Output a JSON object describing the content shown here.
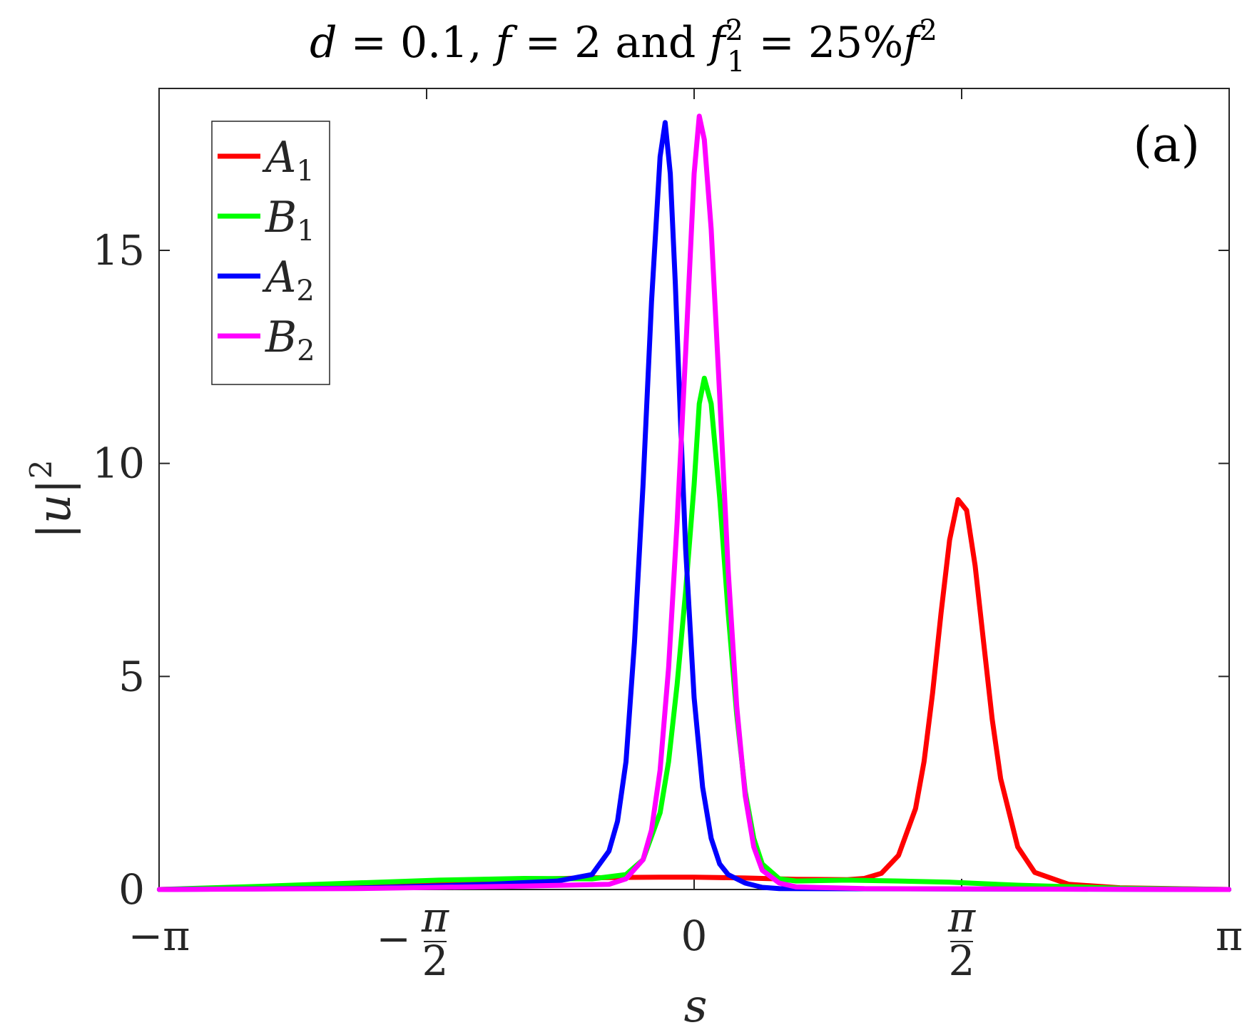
{
  "title": {
    "d_value": "0.1",
    "f_value": "2",
    "connector": "and",
    "percent": "25%"
  },
  "panel_label": "(a)",
  "chart_data": {
    "type": "line",
    "xlabel": "s",
    "ylabel": "|u|²",
    "xlim": [
      -3.14159,
      3.14159
    ],
    "ylim": [
      0,
      18.8
    ],
    "x_ticks": [
      {
        "value": -3.14159,
        "label": "−π"
      },
      {
        "value": -1.5708,
        "label": "−π/2"
      },
      {
        "value": 0,
        "label": "0"
      },
      {
        "value": 1.5708,
        "label": "π/2"
      },
      {
        "value": 3.14159,
        "label": "π"
      }
    ],
    "y_ticks": [
      {
        "value": 0,
        "label": "0"
      },
      {
        "value": 5,
        "label": "5"
      },
      {
        "value": 10,
        "label": "10"
      },
      {
        "value": 15,
        "label": "15"
      }
    ],
    "legend_position": "top-left",
    "series": [
      {
        "name": "A1",
        "sym": "A",
        "sub": "1",
        "color": "#ff0000",
        "x": [
          -3.14,
          -2.5,
          -2.0,
          -1.5,
          -1.0,
          -0.5,
          -0.2,
          0.0,
          0.3,
          0.6,
          0.9,
          1.0,
          1.1,
          1.2,
          1.3,
          1.35,
          1.4,
          1.45,
          1.5,
          1.55,
          1.6,
          1.65,
          1.7,
          1.75,
          1.8,
          1.9,
          2.0,
          2.2,
          2.5,
          3.14
        ],
        "y": [
          0.0,
          0.04,
          0.1,
          0.18,
          0.24,
          0.28,
          0.29,
          0.29,
          0.27,
          0.24,
          0.23,
          0.26,
          0.38,
          0.8,
          1.9,
          3.0,
          4.6,
          6.5,
          8.2,
          9.15,
          8.9,
          7.6,
          5.8,
          4.0,
          2.6,
          1.0,
          0.4,
          0.12,
          0.04,
          0.0
        ]
      },
      {
        "name": "B1",
        "sym": "B",
        "sub": "1",
        "color": "#00ff00",
        "x": [
          -3.14,
          -2.5,
          -2.0,
          -1.5,
          -1.0,
          -0.6,
          -0.4,
          -0.3,
          -0.2,
          -0.15,
          -0.1,
          -0.05,
          0.0,
          0.03,
          0.06,
          0.1,
          0.15,
          0.2,
          0.25,
          0.3,
          0.35,
          0.4,
          0.5,
          0.6,
          0.9,
          1.2,
          1.5,
          1.9,
          2.5,
          3.14
        ],
        "y": [
          0.0,
          0.08,
          0.15,
          0.22,
          0.26,
          0.25,
          0.35,
          0.7,
          1.8,
          3.0,
          4.8,
          7.0,
          9.5,
          11.4,
          12.0,
          11.4,
          9.2,
          6.5,
          4.1,
          2.3,
          1.2,
          0.6,
          0.25,
          0.2,
          0.22,
          0.2,
          0.17,
          0.1,
          0.03,
          0.0
        ]
      },
      {
        "name": "A2",
        "sym": "A",
        "sub": "2",
        "color": "#0000ff",
        "x": [
          -3.14,
          -2.0,
          -1.2,
          -0.8,
          -0.6,
          -0.5,
          -0.45,
          -0.4,
          -0.35,
          -0.3,
          -0.25,
          -0.2,
          -0.17,
          -0.14,
          -0.11,
          -0.08,
          -0.05,
          0.0,
          0.05,
          0.1,
          0.15,
          0.2,
          0.3,
          0.4,
          0.5,
          3.14
        ],
        "y": [
          0.0,
          0.03,
          0.12,
          0.2,
          0.35,
          0.9,
          1.6,
          3.0,
          5.8,
          9.5,
          13.8,
          17.2,
          18.0,
          16.8,
          14.2,
          11.0,
          8.0,
          4.5,
          2.4,
          1.2,
          0.6,
          0.35,
          0.15,
          0.05,
          0.02,
          0.0
        ]
      },
      {
        "name": "B2",
        "sym": "B",
        "sub": "2",
        "color": "#ff00ff",
        "x": [
          -3.14,
          -2.0,
          -1.0,
          -0.5,
          -0.4,
          -0.3,
          -0.25,
          -0.2,
          -0.15,
          -0.1,
          -0.05,
          0.0,
          0.03,
          0.06,
          0.1,
          0.15,
          0.2,
          0.25,
          0.3,
          0.35,
          0.4,
          0.5,
          0.6,
          1.0,
          2.0,
          3.14
        ],
        "y": [
          0.0,
          0.02,
          0.08,
          0.12,
          0.25,
          0.7,
          1.4,
          2.8,
          5.2,
          8.6,
          12.6,
          16.8,
          18.15,
          17.6,
          15.5,
          11.6,
          7.5,
          4.3,
          2.2,
          1.0,
          0.45,
          0.15,
          0.06,
          0.02,
          0.01,
          0.0
        ]
      }
    ]
  }
}
